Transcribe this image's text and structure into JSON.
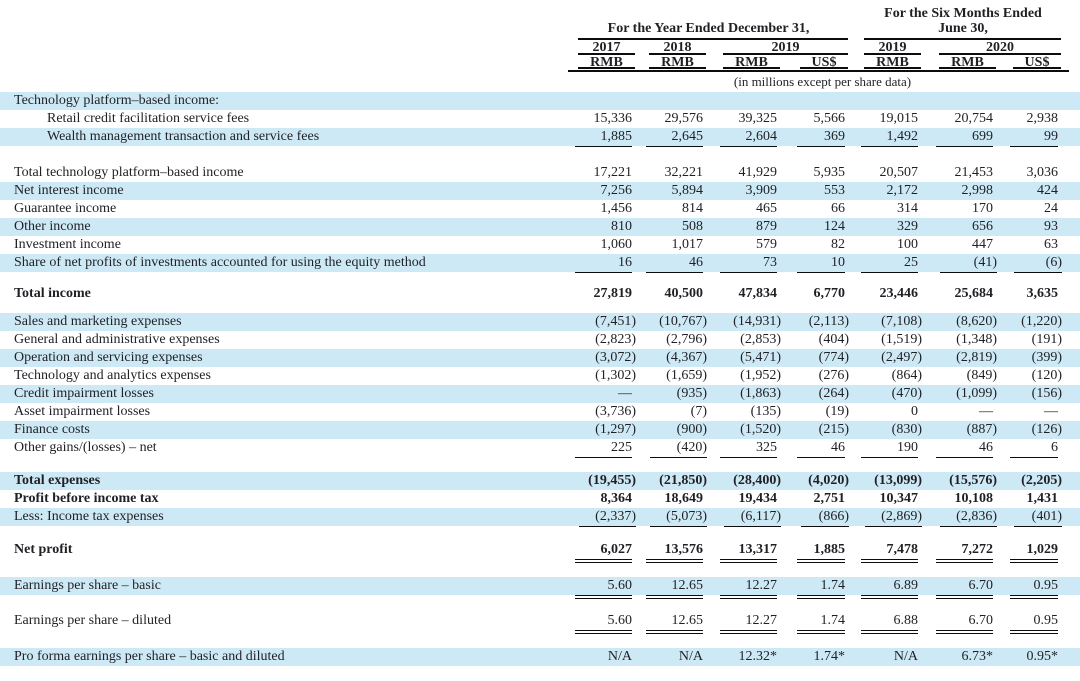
{
  "meta": {
    "units_note": "(in millions except per share data)"
  },
  "colors": {
    "row_shade": "#cee9f6",
    "text": "#1f2024",
    "rule": "#0c0c0c"
  },
  "header": {
    "year_group": {
      "title": "For the Year Ended December 31,",
      "years": [
        "2017",
        "2018",
        "2019"
      ]
    },
    "six_month_group": {
      "title_line1": "For the Six Months Ended",
      "title_line2": "June 30,",
      "years": [
        "2019",
        "2020"
      ]
    },
    "currencies": [
      "RMB",
      "RMB",
      "RMB",
      "US$",
      "RMB",
      "RMB",
      "US$"
    ]
  },
  "rows": [
    {
      "label": "Technology platform–based income:",
      "shaded": true,
      "values": [
        "",
        "",
        "",
        "",
        "",
        "",
        ""
      ]
    },
    {
      "label": "Retail credit facilitation service fees",
      "indent": 1,
      "shaded": false,
      "values": [
        "15,336",
        "29,576",
        "39,325",
        "5,566",
        "19,015",
        "20,754",
        "2,938"
      ]
    },
    {
      "label": "Wealth management transaction and service fees",
      "indent": 1,
      "shaded": true,
      "values": [
        "1,885",
        "2,645",
        "2,604",
        "369",
        "1,492",
        "699",
        "99"
      ],
      "underline": "single"
    },
    {
      "type": "spacer",
      "h": 18
    },
    {
      "label": "Total technology platform–based income",
      "shaded": false,
      "values": [
        "17,221",
        "32,221",
        "41,929",
        "5,935",
        "20,507",
        "21,453",
        "3,036"
      ]
    },
    {
      "label": "Net interest income",
      "shaded": true,
      "values": [
        "7,256",
        "5,894",
        "3,909",
        "553",
        "2,172",
        "2,998",
        "424"
      ]
    },
    {
      "label": "Guarantee income",
      "shaded": false,
      "values": [
        "1,456",
        "814",
        "465",
        "66",
        "314",
        "170",
        "24"
      ]
    },
    {
      "label": "Other income",
      "shaded": true,
      "values": [
        "810",
        "508",
        "879",
        "124",
        "329",
        "656",
        "93"
      ]
    },
    {
      "label": "Investment income",
      "shaded": false,
      "values": [
        "1,060",
        "1,017",
        "579",
        "82",
        "100",
        "447",
        "63"
      ]
    },
    {
      "label": "Share of net profits of investments accounted for using the equity method",
      "shaded": true,
      "values": [
        "16",
        "46",
        "73",
        "10",
        "25",
        "(41)",
        "(6)"
      ],
      "underline": "single"
    },
    {
      "type": "spacer",
      "h": 13
    },
    {
      "label": "Total income",
      "bold": true,
      "shaded": false,
      "values": [
        "27,819",
        "40,500",
        "47,834",
        "6,770",
        "23,446",
        "25,684",
        "3,635"
      ]
    },
    {
      "type": "spacer",
      "h": 10
    },
    {
      "label": "Sales and marketing expenses",
      "shaded": true,
      "values": [
        "(7,451)",
        "(10,767)",
        "(14,931)",
        "(2,113)",
        "(7,108)",
        "(8,620)",
        "(1,220)"
      ]
    },
    {
      "label": "General and administrative expenses",
      "shaded": false,
      "values": [
        "(2,823)",
        "(2,796)",
        "(2,853)",
        "(404)",
        "(1,519)",
        "(1,348)",
        "(191)"
      ]
    },
    {
      "label": "Operation and servicing expenses",
      "shaded": true,
      "values": [
        "(3,072)",
        "(4,367)",
        "(5,471)",
        "(774)",
        "(2,497)",
        "(2,819)",
        "(399)"
      ]
    },
    {
      "label": "Technology and analytics expenses",
      "shaded": false,
      "values": [
        "(1,302)",
        "(1,659)",
        "(1,952)",
        "(276)",
        "(864)",
        "(849)",
        "(120)"
      ]
    },
    {
      "label": "Credit impairment losses",
      "shaded": true,
      "values": [
        "—",
        "(935)",
        "(1,863)",
        "(264)",
        "(470)",
        "(1,099)",
        "(156)"
      ]
    },
    {
      "label": "Asset impairment losses",
      "shaded": false,
      "values": [
        "(3,736)",
        "(7)",
        "(135)",
        "(19)",
        "0",
        "—",
        "—"
      ]
    },
    {
      "label": "Finance costs",
      "shaded": true,
      "values": [
        "(1,297)",
        "(900)",
        "(1,520)",
        "(215)",
        "(830)",
        "(887)",
        "(126)"
      ]
    },
    {
      "label": "Other gains/(losses) – net",
      "shaded": false,
      "values": [
        "225",
        "(420)",
        "325",
        "46",
        "190",
        "46",
        "6"
      ],
      "underline": "single"
    },
    {
      "type": "spacer",
      "h": 15
    },
    {
      "label": "Total expenses",
      "bold": true,
      "shaded": true,
      "values": [
        "(19,455)",
        "(21,850)",
        "(28,400)",
        "(4,020)",
        "(13,099)",
        "(15,576)",
        "(2,205)"
      ]
    },
    {
      "label": "Profit before income tax",
      "bold": true,
      "shaded": false,
      "values": [
        "8,364",
        "18,649",
        "19,434",
        "2,751",
        "10,347",
        "10,108",
        "1,431"
      ]
    },
    {
      "label": "Less: Income tax expenses",
      "shaded": true,
      "values": [
        "(2,337)",
        "(5,073)",
        "(6,117)",
        "(866)",
        "(2,869)",
        "(2,836)",
        "(401)"
      ],
      "underline": "single"
    },
    {
      "type": "spacer",
      "h": 15
    },
    {
      "label": "Net profit",
      "bold": true,
      "shaded": false,
      "values": [
        "6,027",
        "13,576",
        "13,317",
        "1,885",
        "7,478",
        "7,272",
        "1,029"
      ],
      "underline": "double"
    },
    {
      "type": "spacer",
      "h": 18
    },
    {
      "label": "Earnings per share – basic",
      "shaded": true,
      "values": [
        "5.60",
        "12.65",
        "12.27",
        "1.74",
        "6.89",
        "6.70",
        "0.95"
      ],
      "underline": "double"
    },
    {
      "type": "spacer",
      "h": 17
    },
    {
      "label": "Earnings per share – diluted",
      "shaded": false,
      "values": [
        "5.60",
        "12.65",
        "12.27",
        "1.74",
        "6.88",
        "6.70",
        "0.95"
      ],
      "underline": "double"
    },
    {
      "type": "spacer",
      "h": 18
    },
    {
      "label": "Pro forma earnings per share – basic and diluted",
      "shaded": true,
      "values": [
        "N/A",
        "N/A",
        "12.32*",
        "1.74*",
        "N/A",
        "6.73*",
        "0.95*"
      ]
    }
  ]
}
